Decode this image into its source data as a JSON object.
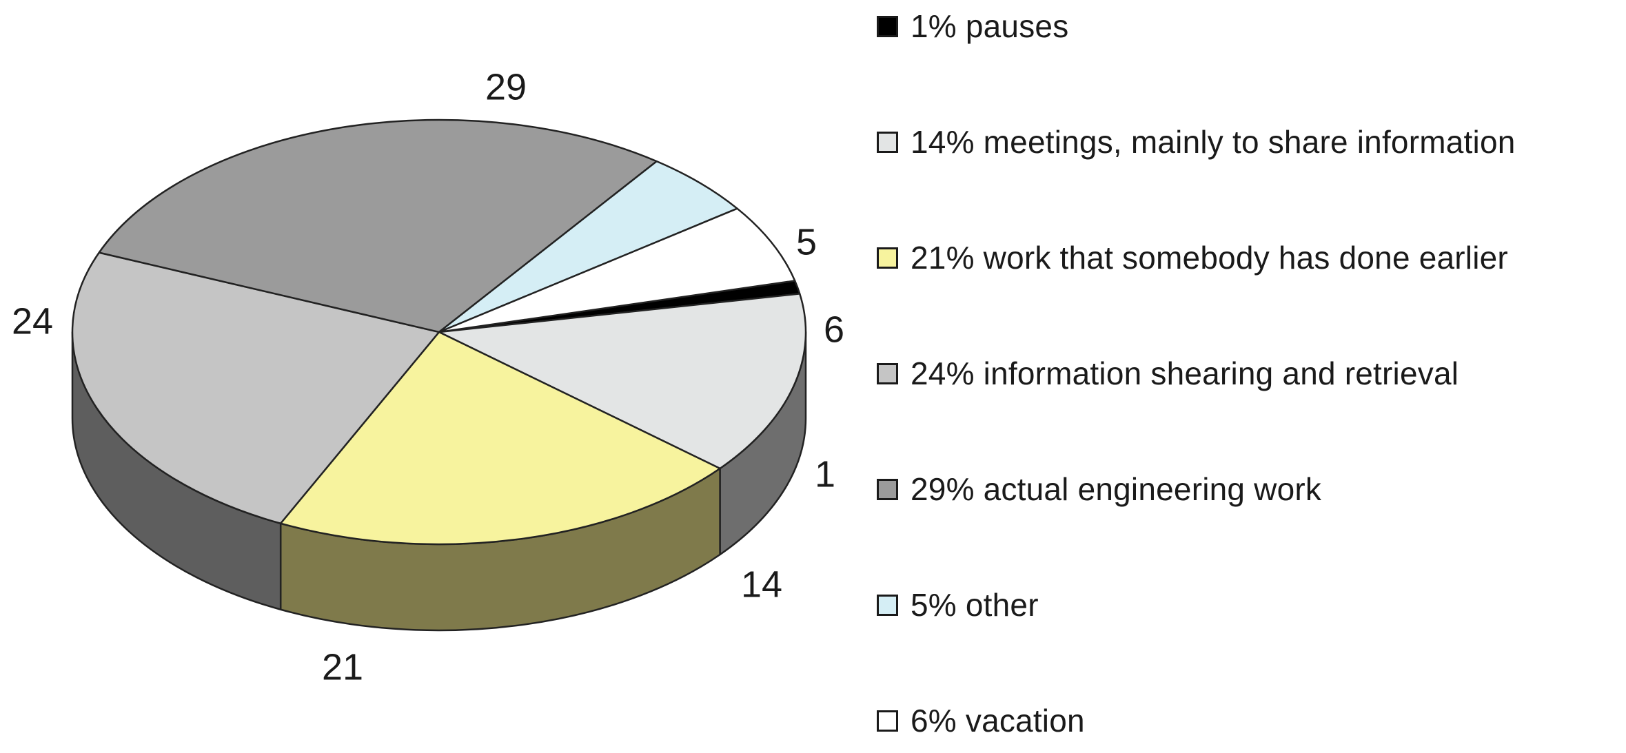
{
  "chart_data": {
    "type": "pie",
    "style": "3d",
    "slices": [
      {
        "value": 1,
        "label": "1",
        "legend": "1% pauses",
        "color": "#000000",
        "side_color": "#000000"
      },
      {
        "value": 14,
        "label": "14",
        "legend": "14% meetings, mainly to share information",
        "color": "#e3e5e5",
        "side_color": "#6e6e6e"
      },
      {
        "value": 21,
        "label": "21",
        "legend": "21% work that somebody has done earlier",
        "color": "#f7f39e",
        "side_color": "#7f7a4b"
      },
      {
        "value": 24,
        "label": "24",
        "legend": "24% information shearing and retrieval",
        "color": "#c5c5c5",
        "side_color": "#5e5e5e"
      },
      {
        "value": 29,
        "label": "29",
        "legend": "29% actual engineering work",
        "color": "#9b9b9b",
        "side_color": "#5e5e5e"
      },
      {
        "value": 5,
        "label": "5",
        "legend": "5% other",
        "color": "#d5eef5",
        "side_color": "#8ea3a9"
      },
      {
        "value": 6,
        "label": "6",
        "legend": "6% vacation",
        "color": "#ffffff",
        "side_color": "#bdbdbd"
      }
    ],
    "legend_position": "right",
    "title": ""
  }
}
